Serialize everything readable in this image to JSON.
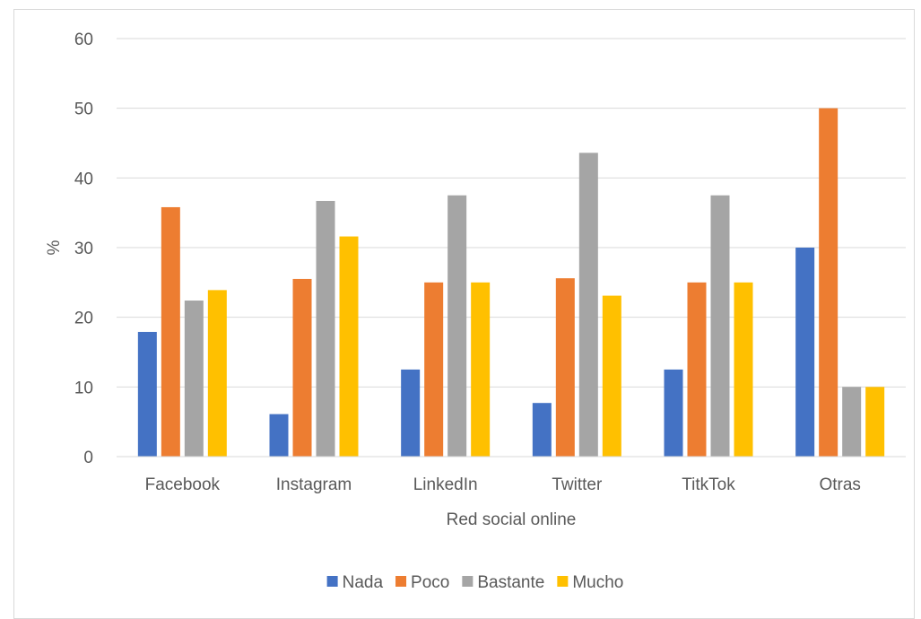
{
  "chart_data": {
    "type": "bar",
    "title": "",
    "xlabel": "Red social online",
    "ylabel": "%",
    "ylim": [
      0,
      60
    ],
    "yticks": [
      0,
      10,
      20,
      30,
      40,
      50,
      60
    ],
    "grid": true,
    "legend_position": "bottom",
    "categories": [
      "Facebook",
      "Instagram",
      "LinkedIn",
      "Twitter",
      "TitkTok",
      "Otras"
    ],
    "series": [
      {
        "name": "Nada",
        "color": "#4472c4",
        "values": [
          17.9,
          6.1,
          12.5,
          7.7,
          12.5,
          30
        ]
      },
      {
        "name": "Poco",
        "color": "#ed7d31",
        "values": [
          35.8,
          25.5,
          25,
          25.6,
          25,
          50
        ]
      },
      {
        "name": "Bastante",
        "color": "#a5a5a5",
        "values": [
          22.4,
          36.7,
          37.5,
          43.6,
          37.5,
          10
        ]
      },
      {
        "name": "Mucho",
        "color": "#ffc000",
        "values": [
          23.9,
          31.6,
          25,
          23.1,
          25,
          10
        ]
      }
    ]
  }
}
